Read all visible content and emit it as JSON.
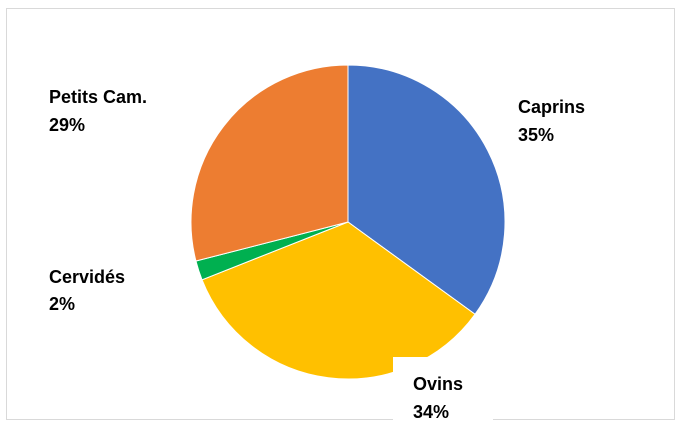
{
  "chart_data": {
    "type": "pie",
    "title": "",
    "start": "top",
    "direction": "clockwise",
    "slices": [
      {
        "label": "Caprins",
        "value": 35,
        "value_label": "35%",
        "color": "#4472C4"
      },
      {
        "label": "Ovins",
        "value": 34,
        "value_label": "34%",
        "color": "#FFC000"
      },
      {
        "label": "Cervidés",
        "value": 2,
        "value_label": "2%",
        "color": "#00B050"
      },
      {
        "label": "Petits Cam.",
        "value": 29,
        "value_label": "29%",
        "color": "#ED7D31"
      }
    ]
  }
}
